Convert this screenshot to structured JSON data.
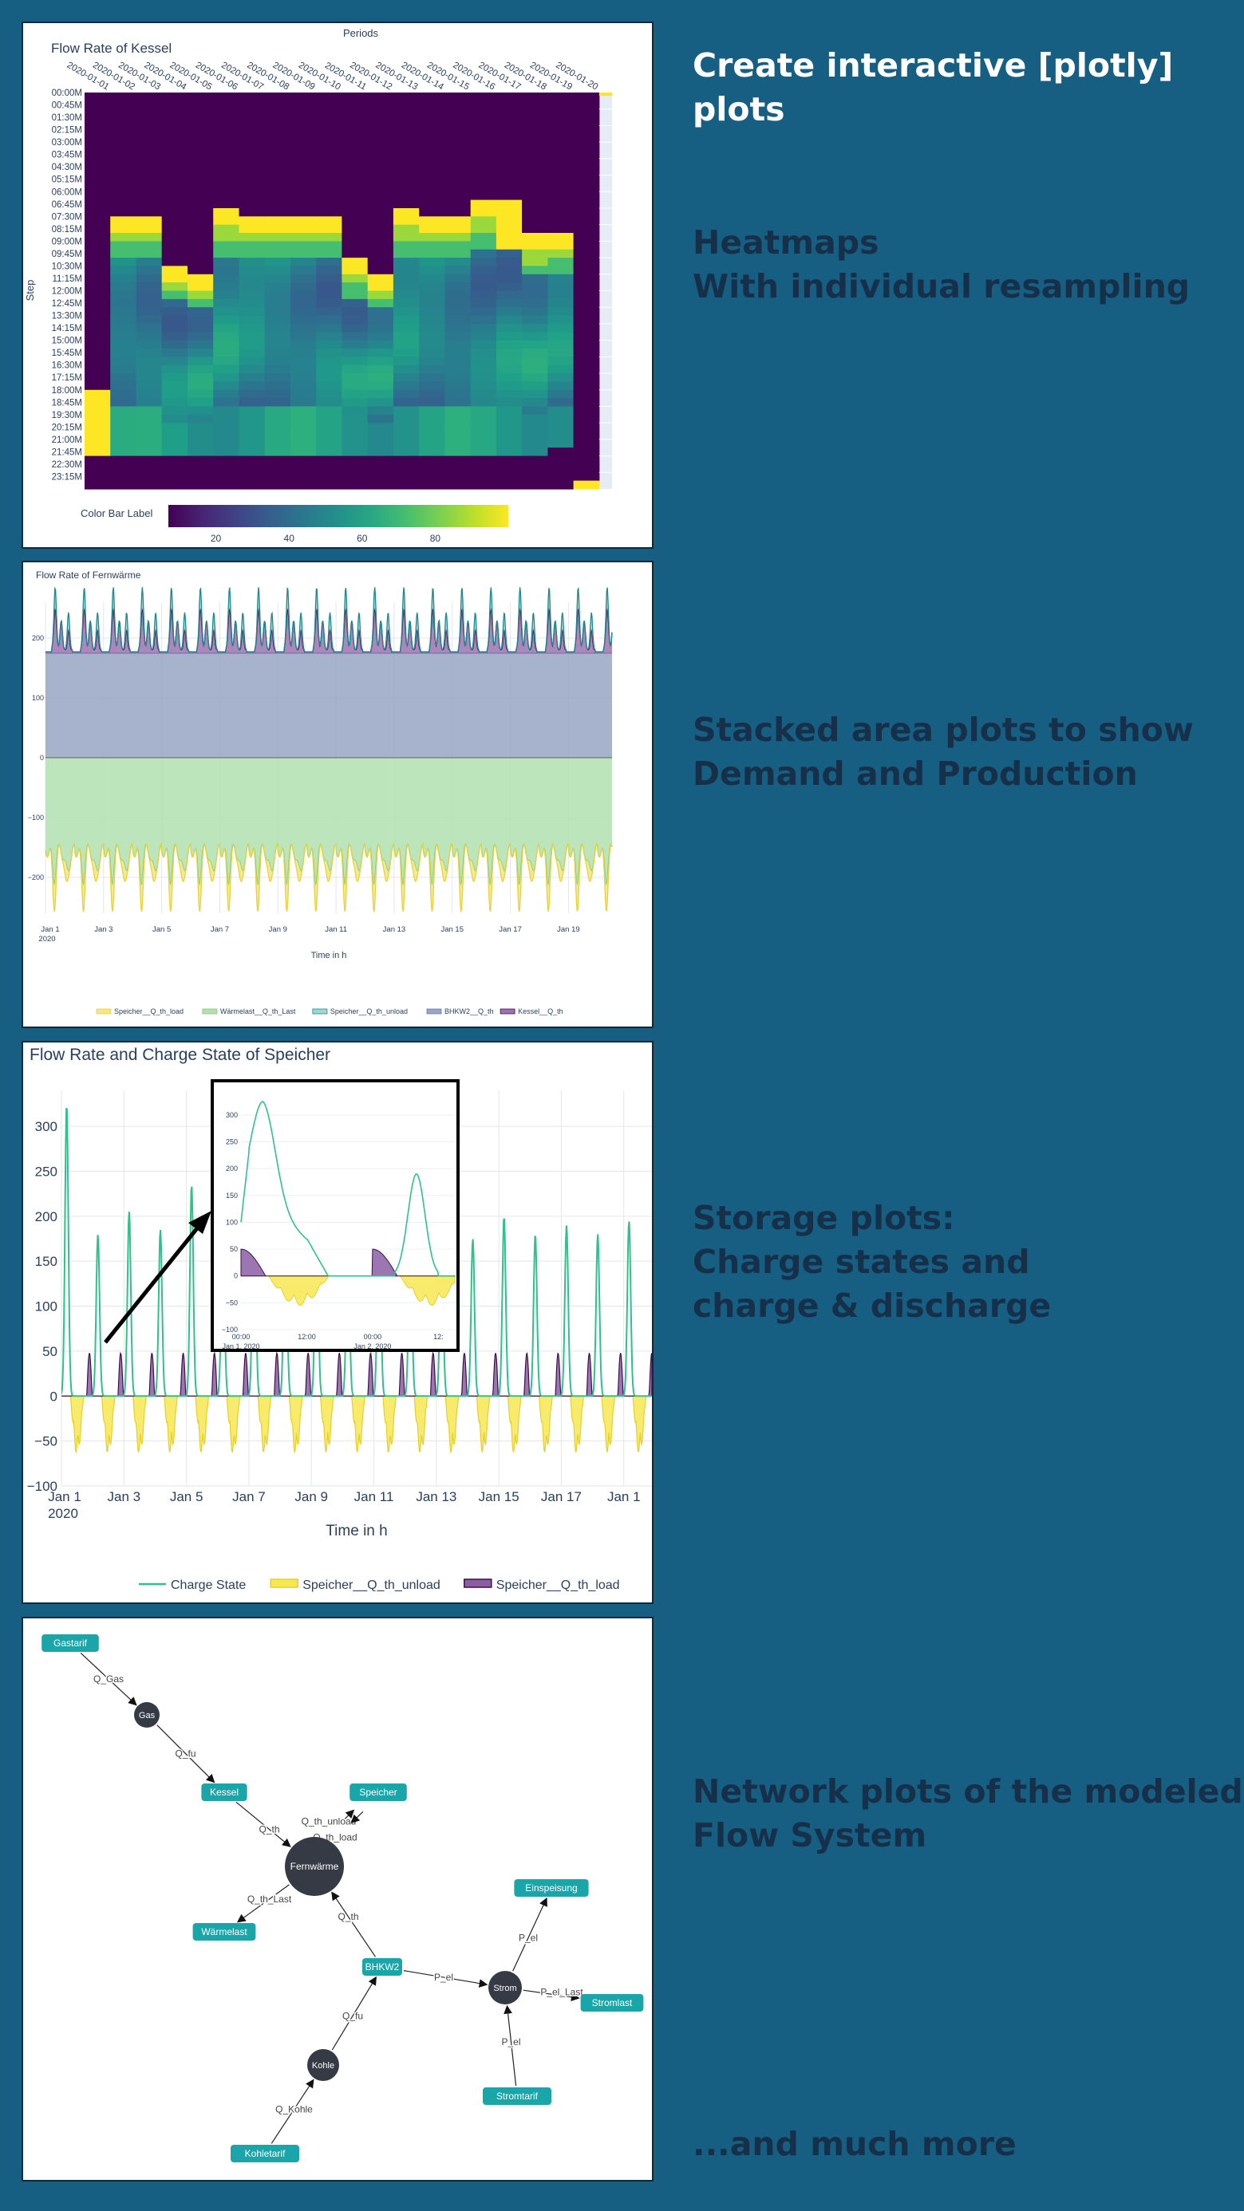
{
  "captions": {
    "plotly": "Create interactive [plotly] plots",
    "heatmaps": "Heatmaps\nWith individual resampling",
    "stacked": "Stacked area plots to show\nDemand and Production",
    "storage": "Storage plots:\nCharge states and\ncharge & discharge",
    "network": "Network plots of the modeled\nFlow System",
    "more": "...and much more"
  },
  "colors": {
    "background": "#175f82",
    "caption_dark": "#16304a",
    "teal": "#1aa5a8",
    "node_dark": "#353a44"
  },
  "heatmap": {
    "chart_data": {
      "type": "heatmap",
      "title": "Flow Rate of Kessel",
      "xlabel": "Periods",
      "ylabel": "Step",
      "colorbar_label": "Color Bar Label",
      "colorbar_ticks": [
        20,
        40,
        60,
        80
      ],
      "zrange": [
        0,
        100
      ],
      "colorscale": "viridis",
      "x": [
        "2020-01-01",
        "2020-01-02",
        "2020-01-03",
        "2020-01-04",
        "2020-01-05",
        "2020-01-06",
        "2020-01-07",
        "2020-01-08",
        "2020-01-09",
        "2020-01-10",
        "2020-01-11",
        "2020-01-12",
        "2020-01-13",
        "2020-01-14",
        "2020-01-15",
        "2020-01-16",
        "2020-01-17",
        "2020-01-18",
        "2020-01-19",
        "2020-01-20"
      ],
      "y_ticks": [
        "00:00M",
        "00:45M",
        "01:30M",
        "02:15M",
        "03:00M",
        "03:45M",
        "04:30M",
        "05:15M",
        "06:00M",
        "06:45M",
        "07:30M",
        "08:15M",
        "09:00M",
        "09:45M",
        "10:30M",
        "11:15M",
        "12:00M",
        "12:45M",
        "13:30M",
        "14:15M",
        "15:00M",
        "15:45M",
        "16:30M",
        "17:15M",
        "18:00M",
        "18:45M",
        "19:30M",
        "20:15M",
        "21:00M",
        "21:45M",
        "22:30M",
        "23:15M"
      ],
      "active_start": [
        "18:00M",
        "07:30M",
        "07:30M",
        "10:30M",
        "11:00M",
        "07:15M",
        "07:30M",
        "07:30M",
        "07:30M",
        "07:30M",
        "10:15M",
        "11:00M",
        "07:15M",
        "07:30M",
        "07:30M",
        "06:45M",
        "06:30M",
        "08:45M",
        "08:30M",
        "23:30M"
      ],
      "active_end": [
        "21:45M",
        "21:45M",
        "21:45M",
        "21:45M",
        "21:45M",
        "21:45M",
        "21:45M",
        "21:45M",
        "21:45M",
        "21:45M",
        "21:45M",
        "21:45M",
        "21:45M",
        "21:45M",
        "21:45M",
        "21:45M",
        "21:45M",
        "21:45M",
        "21:30M",
        "23:59M"
      ]
    }
  },
  "area": {
    "chart_data": {
      "type": "area",
      "title": "Flow Rate of Fernwärme",
      "xlabel": "Time in h",
      "ylabel": "",
      "ylim": [
        -260,
        260
      ],
      "y_ticks": [
        200,
        100,
        0,
        -100,
        -200
      ],
      "y_tick_labels": [
        "200",
        "100",
        "0",
        "−100",
        "−200"
      ],
      "x_tick_labels": [
        "Jan 1",
        "Jan 3",
        "Jan 5",
        "Jan 7",
        "Jan 9",
        "Jan 11",
        "Jan 13",
        "Jan 15",
        "Jan 17",
        "Jan 19"
      ],
      "x_tick_year": "2020",
      "x_range_days": [
        0,
        19.5
      ],
      "days": 20,
      "series": [
        {
          "name": "Speicher__Q_th_load",
          "color": "#f5e67d",
          "line": "#e8d23a",
          "stack": "negative",
          "base": 0,
          "peak": 45,
          "shape": "morning"
        },
        {
          "name": "Wärmelast__Q_th_Last",
          "color": "#b2e0b0",
          "line": "#7ec87a",
          "stack": "negative",
          "base": 155,
          "peak": 55,
          "shape": "double"
        },
        {
          "name": "Speicher__Q_th_unload",
          "color": "#9dd8d4",
          "line": "#1a8a8f",
          "stack": "positive",
          "base": 0,
          "peak": 35,
          "shape": "evening"
        },
        {
          "name": "BHKW2__Q_th",
          "color": "#98a5c4",
          "line": "#6b7aa4",
          "stack": "positive",
          "base": 175,
          "peak": 0,
          "shape": "flat"
        },
        {
          "name": "Kessel__Q_th",
          "color": "#9d72b0",
          "line": "#44124d",
          "stack": "positive",
          "base": 5,
          "peak": 70,
          "shape": "kessel"
        }
      ]
    }
  },
  "storage": {
    "chart_data": {
      "type": "line",
      "title": "Flow Rate and Charge State of Speicher",
      "xlabel": "Time in h",
      "ylabel": "",
      "ylim": [
        -100,
        340
      ],
      "y_ticks": [
        300,
        250,
        200,
        150,
        100,
        50,
        0,
        -50,
        -100
      ],
      "y_tick_labels": [
        "300",
        "250",
        "200",
        "150",
        "100",
        "50",
        "0",
        "−50",
        "−100"
      ],
      "x_tick_labels": [
        "Jan 1",
        "Jan 3",
        "Jan 5",
        "Jan 7",
        "Jan 9",
        "Jan 11",
        "Jan 13",
        "Jan 15",
        "Jan 17",
        "Jan 1"
      ],
      "x_tick_year": "2020",
      "x_range_days": [
        0,
        18.9
      ],
      "charge_peaks": [
        325,
        180,
        205,
        185,
        235,
        180,
        245,
        215,
        195,
        175,
        230,
        185,
        180,
        175,
        200,
        180,
        190,
        180,
        195,
        155
      ],
      "series": [
        {
          "name": "Charge State",
          "color": "#2ec28a",
          "kind": "line"
        },
        {
          "name": "Speicher__Q_th_unload",
          "color": "#f7e751",
          "line": "#e6cf29",
          "kind": "area"
        },
        {
          "name": "Speicher__Q_th_load",
          "color": "#8b5ea3",
          "line": "#3d0f4a",
          "kind": "area"
        }
      ],
      "inset": {
        "ylim": [
          -100,
          340
        ],
        "y_ticks": [
          300,
          250,
          200,
          150,
          100,
          50,
          0,
          -50,
          -100
        ],
        "y_tick_labels": [
          "300",
          "250",
          "200",
          "150",
          "100",
          "50",
          "0",
          "−50",
          "−100"
        ],
        "x_tick_labels": [
          "00:00",
          "12:00",
          "00:00",
          "12:"
        ],
        "x_tick_dates": [
          "Jan 1, 2020",
          "",
          "Jan 2, 2020",
          ""
        ]
      }
    }
  },
  "network": {
    "nodes": [
      {
        "id": "gastarif",
        "label": "Gastarif",
        "kind": "box"
      },
      {
        "id": "gas",
        "label": "Gas",
        "kind": "bus"
      },
      {
        "id": "kessel",
        "label": "Kessel",
        "kind": "box"
      },
      {
        "id": "speicher",
        "label": "Speicher",
        "kind": "box"
      },
      {
        "id": "fernwaerme",
        "label": "Fernwärme",
        "kind": "bus-large"
      },
      {
        "id": "waermelast",
        "label": "Wärmelast",
        "kind": "box"
      },
      {
        "id": "bhkw2",
        "label": "BHKW2",
        "kind": "box"
      },
      {
        "id": "strom",
        "label": "Strom",
        "kind": "bus"
      },
      {
        "id": "einspeisung",
        "label": "Einspeisung",
        "kind": "box"
      },
      {
        "id": "stromlast",
        "label": "Stromlast",
        "kind": "box"
      },
      {
        "id": "stromtarif",
        "label": "Stromtarif",
        "kind": "box"
      },
      {
        "id": "kohle",
        "label": "Kohle",
        "kind": "bus"
      },
      {
        "id": "kohletarif",
        "label": "Kohletarif",
        "kind": "box"
      }
    ],
    "edges": [
      {
        "from": "gastarif",
        "to": "gas",
        "label": "Q_Gas"
      },
      {
        "from": "gas",
        "to": "kessel",
        "label": "Q_fu"
      },
      {
        "from": "kessel",
        "to": "fernwaerme",
        "label": "Q_th"
      },
      {
        "from": "fernwaerme",
        "to": "speicher",
        "label": "Q_th_unload"
      },
      {
        "from": "speicher",
        "to": "fernwaerme",
        "label": "Q_th_load"
      },
      {
        "from": "fernwaerme",
        "to": "waermelast",
        "label": "Q_th_Last"
      },
      {
        "from": "bhkw2",
        "to": "fernwaerme",
        "label": "Q_th"
      },
      {
        "from": "bhkw2",
        "to": "strom",
        "label": "P_el"
      },
      {
        "from": "strom",
        "to": "einspeisung",
        "label": "P_el"
      },
      {
        "from": "strom",
        "to": "stromlast",
        "label": "P_el_Last"
      },
      {
        "from": "stromtarif",
        "to": "strom",
        "label": "P_el"
      },
      {
        "from": "kohle",
        "to": "bhkw2",
        "label": "Q_fu"
      },
      {
        "from": "kohletarif",
        "to": "kohle",
        "label": "Q_Kohle"
      }
    ]
  }
}
